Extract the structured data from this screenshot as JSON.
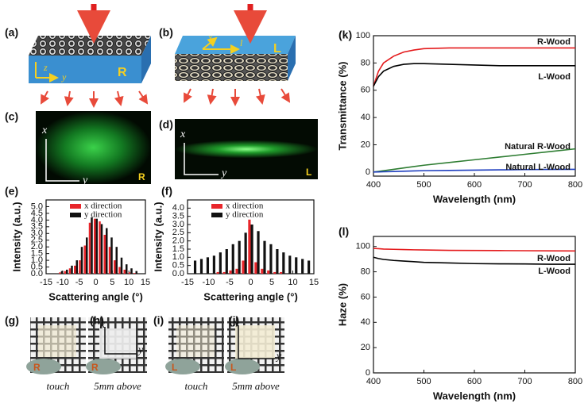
{
  "illustrations": {
    "labels": [
      "(a)",
      "(b)",
      "(c)",
      "(d)",
      "(g)",
      "(h)",
      "(i)",
      "(j)"
    ],
    "markers": [
      "R",
      "L",
      "R",
      "L",
      "R",
      "R",
      "L",
      "L"
    ],
    "axis_letters": [
      "z",
      "y",
      "x",
      "l",
      "x",
      "y",
      "x",
      "y",
      "x",
      "y",
      "x",
      "y"
    ],
    "captions": [
      "touch",
      "5mm above",
      "touch",
      "5mm above"
    ]
  },
  "chart_data": [
    {
      "type": "bar",
      "panel": "(e)",
      "xlabel": "Scattering angle (°)",
      "ylabel": "Intensity (a.u.)",
      "x": [
        -10.5,
        -9,
        -7.5,
        -6,
        -4.5,
        -3,
        -1.5,
        0,
        1.5,
        3,
        4.5,
        6,
        7.5,
        9,
        10.5,
        12
      ],
      "series": [
        {
          "name": "x direction",
          "color": "#e8262b",
          "values": [
            0.1,
            0.2,
            0.4,
            0.6,
            1.0,
            2.1,
            3.8,
            4.1,
            3.9,
            2.9,
            2.0,
            1.0,
            0.5,
            0.3,
            0.1,
            0.05
          ]
        },
        {
          "name": "y direction",
          "color": "#111111",
          "values": [
            0.2,
            0.3,
            0.6,
            1.0,
            2.0,
            2.7,
            4.2,
            4.1,
            3.7,
            3.4,
            2.7,
            2.0,
            1.2,
            0.7,
            0.4,
            0.2
          ]
        }
      ],
      "xlim": [
        -15,
        15
      ],
      "xticks": [
        -15,
        -10,
        -5,
        0,
        5,
        10,
        15
      ],
      "ylim": [
        0,
        5.5
      ],
      "yticks": [
        {
          "value": 0,
          "label": "0.0"
        },
        0.5,
        {
          "value": 1,
          "label": "1.0"
        },
        1.5,
        {
          "value": 2,
          "label": "2.0"
        },
        2.5,
        {
          "value": 3,
          "label": "3.0"
        },
        3.5,
        {
          "value": 4,
          "label": "4.0"
        },
        4.5,
        {
          "value": 5,
          "label": "5.0"
        }
      ]
    },
    {
      "type": "bar",
      "panel": "(f)",
      "xlabel": "Scattering angle (°)",
      "ylabel": "Intensity (a.u.)",
      "x": [
        -13.5,
        -12,
        -10.5,
        -9,
        -7.5,
        -6,
        -4.5,
        -3,
        -1.5,
        0,
        1.5,
        3,
        4.5,
        6,
        7.5,
        9,
        10.5,
        12,
        13.5
      ],
      "series": [
        {
          "name": "x direction",
          "color": "#e8262b",
          "values": [
            0,
            0,
            0,
            0,
            0.1,
            0.1,
            0.2,
            0.3,
            0.8,
            3.3,
            0.7,
            0.3,
            0.2,
            0.1,
            0.1,
            0,
            0,
            0,
            0
          ]
        },
        {
          "name": "y direction",
          "color": "#111111",
          "values": [
            0.8,
            0.9,
            1.0,
            1.1,
            1.3,
            1.5,
            1.8,
            2.0,
            2.5,
            3.0,
            2.6,
            2.0,
            1.8,
            1.5,
            1.3,
            1.1,
            1.0,
            0.9,
            0.8
          ]
        }
      ],
      "xlim": [
        -15,
        15
      ],
      "xticks": [
        -15,
        -10,
        -5,
        0,
        5,
        10,
        15
      ],
      "ylim": [
        0,
        4.5
      ],
      "yticks": [
        {
          "value": 0,
          "label": "0.0"
        },
        0.5,
        {
          "value": 1,
          "label": "1.0"
        },
        1.5,
        {
          "value": 2,
          "label": "2.0"
        },
        2.5,
        {
          "value": 3,
          "label": "3.0"
        },
        3.5,
        {
          "value": 4,
          "label": "4.0"
        }
      ]
    },
    {
      "type": "line",
      "panel": "(k)",
      "xlabel": "Wavelength (nm)",
      "ylabel": "Transmittance (%)",
      "x": [
        400,
        410,
        420,
        440,
        460,
        480,
        500,
        550,
        600,
        650,
        700,
        750,
        800
      ],
      "series": [
        {
          "name": "R-Wood",
          "color": "#e41a1c",
          "values": [
            63,
            74,
            80,
            85,
            88,
            89.5,
            90.5,
            91,
            91,
            91,
            91,
            91,
            91
          ]
        },
        {
          "name": "L-Wood",
          "color": "#000000",
          "values": [
            63,
            70,
            74,
            77.5,
            79,
            79.5,
            79.5,
            79,
            78.5,
            78,
            78,
            78,
            78
          ]
        },
        {
          "name": "Natural R-Wood",
          "color": "#2e7d32",
          "values": [
            0,
            0.5,
            1,
            2,
            3,
            4,
            5,
            7,
            9,
            11,
            13,
            15,
            17
          ]
        },
        {
          "name": "Natural L-Wood",
          "color": "#1f3fbf",
          "values": [
            0,
            0.1,
            0.2,
            0.4,
            0.6,
            0.8,
            1,
            1.2,
            1.4,
            1.6,
            1.8,
            1.9,
            2
          ]
        }
      ],
      "xlim": [
        400,
        800
      ],
      "xticks": [
        400,
        500,
        600,
        700,
        800
      ],
      "ylim": [
        -3,
        100
      ],
      "yticks": [
        0,
        20,
        40,
        60,
        80,
        100
      ]
    },
    {
      "type": "line",
      "panel": "(l)",
      "xlabel": "Wavelength (nm)",
      "ylabel": "Haze (%)",
      "x": [
        400,
        410,
        420,
        440,
        460,
        480,
        500,
        550,
        600,
        650,
        700,
        750,
        800
      ],
      "series": [
        {
          "name": "R-Wood",
          "color": "#e41a1c",
          "values": [
            98.5,
            98.3,
            98,
            97.8,
            97.6,
            97.4,
            97.3,
            97,
            96.9,
            96.8,
            96.7,
            96.6,
            96.5
          ]
        },
        {
          "name": "L-Wood",
          "color": "#000000",
          "values": [
            91.5,
            90.5,
            89.8,
            89,
            88.5,
            88,
            87.5,
            87,
            86.5,
            86.3,
            86.2,
            86,
            86
          ]
        }
      ],
      "xlim": [
        400,
        800
      ],
      "xticks": [
        400,
        500,
        600,
        700,
        800
      ],
      "ylim": [
        0,
        108
      ],
      "yticks": [
        0,
        20,
        40,
        60,
        80,
        100
      ]
    }
  ]
}
